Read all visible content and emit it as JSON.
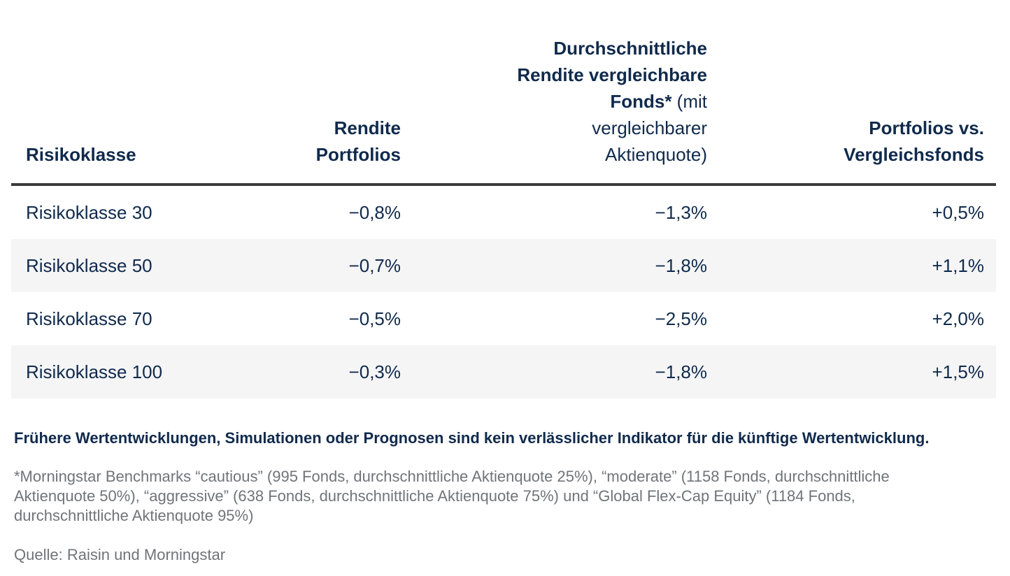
{
  "colors": {
    "navy_text": "#102a4c",
    "stripe_row": "#f5f5f6",
    "header_rule": "#3b3b3b",
    "muted_text": "#707479",
    "background": "#ffffff"
  },
  "header": {
    "col1": "Risikoklasse",
    "col2": "Rendite Portfolios",
    "col3_bold": "Durchschnittliche Rendite vergleichbare Fonds*",
    "col3_regular": " (mit vergleichbarer Aktienquote)",
    "col4": "Portfolios vs. Vergleichsfonds"
  },
  "chart_data": {
    "type": "table",
    "title": "",
    "columns": [
      "Risikoklasse",
      "Rendite Portfolios",
      "Durchschnittliche Rendite vergleichbare Fonds* (mit vergleichbarer Aktienquote)",
      "Portfolios vs. Vergleichsfonds"
    ],
    "rows": [
      [
        "Risikoklasse 30",
        "−0,8%",
        "−1,3%",
        "+0,5%"
      ],
      [
        "Risikoklasse 50",
        "−0,7%",
        "−1,8%",
        "+1,1%"
      ],
      [
        "Risikoklasse 70",
        "−0,5%",
        "−2,5%",
        "+2,0%"
      ],
      [
        "Risikoklasse 100",
        "−0,3%",
        "−1,8%",
        "+1,5%"
      ]
    ],
    "values_numeric_percent": {
      "categories": [
        "Risikoklasse 30",
        "Risikoklasse 50",
        "Risikoklasse 70",
        "Risikoklasse 100"
      ],
      "rendite_portfolios": [
        -0.8,
        -0.7,
        -0.5,
        -0.3
      ],
      "rendite_vergleichbare_fonds": [
        -1.3,
        -1.8,
        -2.5,
        -1.8
      ],
      "portfolios_vs_vergleichsfonds": [
        0.5,
        1.1,
        2.0,
        1.5
      ]
    },
    "layout_hints": {
      "striped_rows": [
        2,
        4
      ],
      "value_alignment": "right",
      "header_alignment": "bottom"
    }
  },
  "disclaimer": "Frühere Wertentwicklungen, Simulationen oder Prognosen sind kein verlässlicher Indikator für die künftige Wertentwicklung.",
  "footnote": "*Morningstar Benchmarks “cautious” (995 Fonds, durchschnittliche Aktienquote 25%), “moderate” (1158 Fonds, durchschnittliche Aktienquote 50%), “aggressive” (638 Fonds, durchschnittliche Aktienquote 75%) und “Global Flex-Cap Equity” (1184 Fonds, durchschnittliche Aktienquote 95%)",
  "source": "Quelle: Raisin und Morningstar"
}
